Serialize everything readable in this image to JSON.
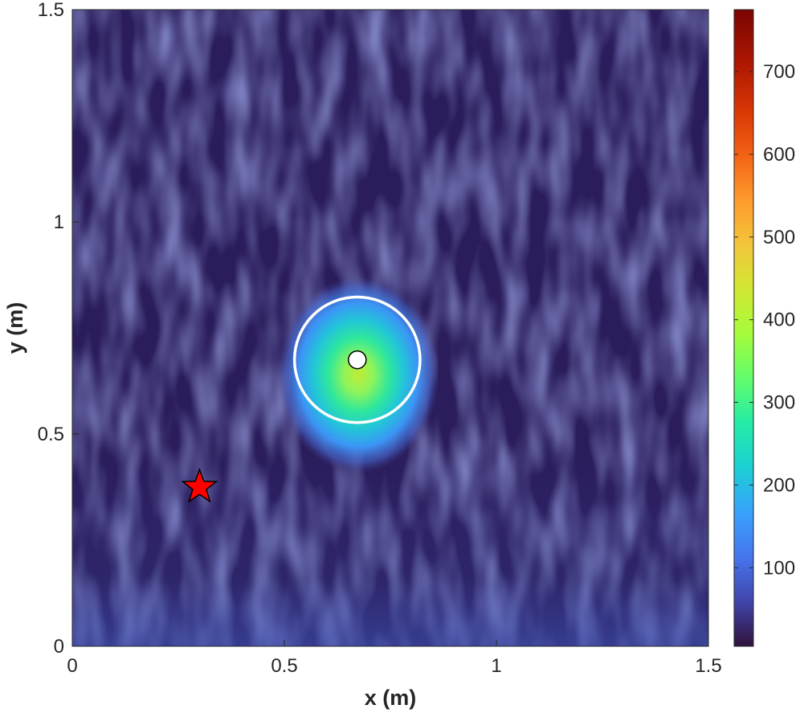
{
  "chart_data": {
    "type": "heatmap",
    "title": "",
    "xlabel": "x (m)",
    "ylabel": "y (m)",
    "xlim": [
      0,
      1.5
    ],
    "ylim": [
      0,
      1.5
    ],
    "x_ticks": [
      {
        "value": 0,
        "label": "0"
      },
      {
        "value": 0.5,
        "label": "0.5"
      },
      {
        "value": 1,
        "label": "1"
      },
      {
        "value": 1.5,
        "label": "1.5"
      }
    ],
    "y_ticks": [
      {
        "value": 0,
        "label": "0"
      },
      {
        "value": 0.5,
        "label": "0.5"
      },
      {
        "value": 1,
        "label": "1"
      },
      {
        "value": 1.5,
        "label": "1.5"
      }
    ],
    "colorbar": {
      "colormap": "turbo",
      "range": [
        5,
        775
      ],
      "ticks": [
        {
          "value": 100,
          "label": "100"
        },
        {
          "value": 200,
          "label": "200"
        },
        {
          "value": 300,
          "label": "300"
        },
        {
          "value": 400,
          "label": "400"
        },
        {
          "value": 500,
          "label": "500"
        },
        {
          "value": 600,
          "label": "600"
        },
        {
          "value": 700,
          "label": "700"
        }
      ]
    },
    "background_level": 30,
    "hotspot": {
      "x": 0.675,
      "y": 0.64,
      "peak": 420
    },
    "estimate_marker": {
      "x": 0.672,
      "y": 0.675,
      "shape": "circle",
      "color": "#ffffff"
    },
    "uncertainty_circle": {
      "x": 0.672,
      "y": 0.675,
      "radius": 0.148,
      "color": "#ffffff"
    },
    "true_source_marker": {
      "x": 0.3,
      "y": 0.375,
      "shape": "star",
      "color": "#ff0000"
    }
  }
}
